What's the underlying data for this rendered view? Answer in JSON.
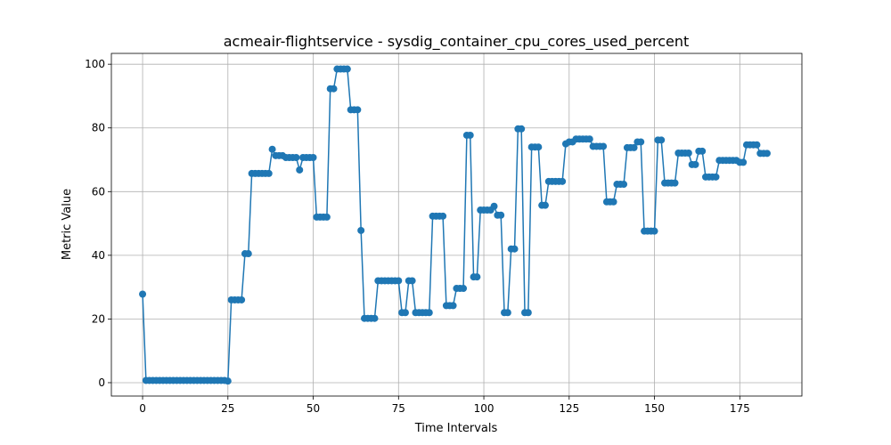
{
  "chart_data": {
    "type": "line",
    "title": "acmeair-flightservice - sysdig_container_cpu_cores_used_percent",
    "x_label": "Time Intervals",
    "y_label": "Metric Value",
    "x": [
      0,
      1,
      2,
      3,
      4,
      5,
      6,
      7,
      8,
      9,
      10,
      11,
      12,
      13,
      14,
      15,
      16,
      17,
      18,
      19,
      20,
      21,
      22,
      23,
      24,
      25,
      26,
      27,
      28,
      29,
      30,
      31,
      32,
      33,
      34,
      35,
      36,
      37,
      38,
      39,
      40,
      41,
      42,
      43,
      44,
      45,
      46,
      47,
      48,
      49,
      50,
      51,
      52,
      53,
      54,
      55,
      56,
      57,
      58,
      59,
      60,
      61,
      62,
      63,
      64,
      65,
      66,
      67,
      68,
      69,
      70,
      71,
      72,
      73,
      74,
      75,
      76,
      77,
      78,
      79,
      80,
      81,
      82,
      83,
      84,
      85,
      86,
      87,
      88,
      89,
      90,
      91,
      92,
      93,
      94,
      95,
      96,
      97,
      98,
      99,
      100,
      101,
      102,
      103,
      104,
      105,
      106,
      107,
      108,
      109,
      110,
      111,
      112,
      113,
      114,
      115,
      116,
      117,
      118,
      119,
      120,
      121,
      122,
      123,
      124,
      125,
      126,
      127,
      128,
      129,
      130,
      131,
      132,
      133,
      134,
      135,
      136,
      137,
      138,
      139,
      140,
      141,
      142,
      143,
      144,
      145,
      146,
      147,
      148,
      149,
      150,
      151,
      152,
      153,
      154,
      155,
      156,
      157,
      158,
      159,
      160,
      161,
      162,
      163,
      164,
      165,
      166,
      167,
      168,
      169,
      170,
      171,
      172,
      173,
      174,
      175,
      176,
      177,
      178,
      179,
      180,
      181,
      182,
      183
    ],
    "series": [
      {
        "name": "sysdig_container_cpu_cores_used_percent",
        "color": "#1f77b4",
        "values": [
          27.8,
          0.7,
          0.7,
          0.7,
          0.7,
          0.7,
          0.7,
          0.7,
          0.7,
          0.7,
          0.7,
          0.7,
          0.7,
          0.7,
          0.7,
          0.7,
          0.7,
          0.7,
          0.7,
          0.7,
          0.7,
          0.7,
          0.7,
          0.7,
          0.7,
          0.5,
          26,
          26,
          26,
          26,
          40.5,
          40.5,
          65.7,
          65.7,
          65.7,
          65.7,
          65.7,
          65.7,
          73.3,
          71.3,
          71.3,
          71.3,
          70.7,
          70.7,
          70.7,
          70.7,
          66.8,
          70.7,
          70.7,
          70.7,
          70.7,
          52,
          52,
          52,
          52,
          92.3,
          92.3,
          98.5,
          98.5,
          98.5,
          98.5,
          85.7,
          85.7,
          85.7,
          47.8,
          20.2,
          20.2,
          20.2,
          20.2,
          32,
          32,
          32,
          32,
          32,
          32,
          32,
          22,
          22,
          32,
          32,
          22,
          22,
          22,
          22,
          22,
          52.3,
          52.3,
          52.3,
          52.3,
          24.2,
          24.2,
          24.2,
          29.6,
          29.6,
          29.6,
          77.7,
          77.7,
          33.2,
          33.2,
          54.2,
          54.2,
          54.2,
          54.2,
          55.4,
          52.6,
          52.6,
          22,
          22,
          42,
          42,
          79.7,
          79.7,
          22,
          22,
          74,
          74,
          74,
          55.7,
          55.7,
          63.2,
          63.2,
          63.2,
          63.2,
          63.2,
          75,
          75.6,
          75.6,
          76.5,
          76.5,
          76.5,
          76.5,
          76.5,
          74.2,
          74.2,
          74.2,
          74.2,
          56.8,
          56.8,
          56.8,
          62.3,
          62.3,
          62.3,
          73.8,
          73.8,
          73.8,
          75.6,
          75.6,
          47.6,
          47.6,
          47.6,
          47.6,
          76.2,
          76.2,
          62.7,
          62.7,
          62.7,
          62.7,
          72.1,
          72.1,
          72.1,
          72.1,
          68.5,
          68.5,
          72.7,
          72.7,
          64.6,
          64.6,
          64.6,
          64.6,
          69.8,
          69.8,
          69.8,
          69.8,
          69.8,
          69.8,
          69.2,
          69.2,
          74.7,
          74.7,
          74.7,
          74.7,
          72,
          72,
          72
        ]
      }
    ],
    "xlim": [
      -9.15,
      193.2
    ],
    "ylim": [
      -4.2,
      103.4
    ],
    "xticks": [
      0,
      25,
      50,
      75,
      100,
      125,
      150,
      175
    ],
    "yticks": [
      0,
      20,
      40,
      60,
      80,
      100
    ],
    "grid": true
  }
}
